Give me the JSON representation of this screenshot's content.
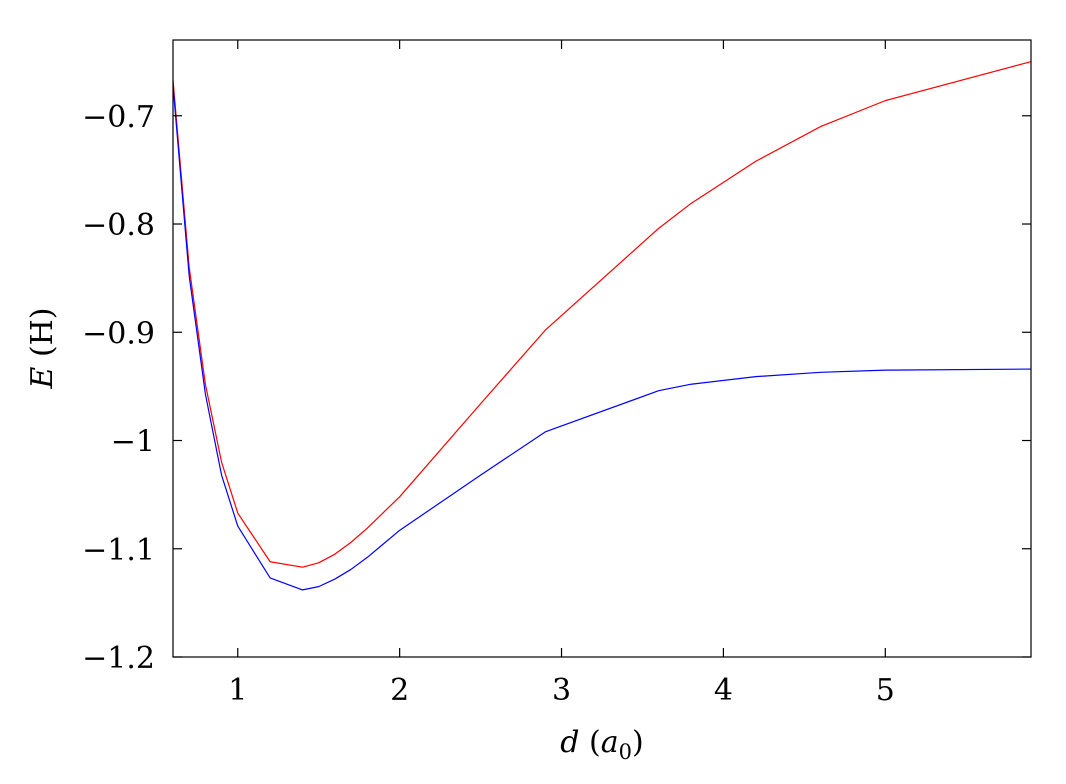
{
  "chart_data": {
    "type": "line",
    "title": "",
    "xlabel": {
      "var": "d",
      "open": " (",
      "unit_base": "a",
      "unit_sub": "0",
      "close": ")"
    },
    "ylabel": {
      "var": "E",
      "rest": " (H)"
    },
    "xlim": [
      0.6,
      5.9
    ],
    "ylim": [
      -1.2,
      -0.63
    ],
    "xticks": [
      1,
      2,
      3,
      4,
      5
    ],
    "xtick_labels": [
      "1",
      "2",
      "3",
      "4",
      "5"
    ],
    "yticks": [
      -1.2,
      -1.1,
      -1.0,
      -0.9,
      -0.8,
      -0.7
    ],
    "ytick_labels": [
      "−1.2",
      "−1.1",
      "−1",
      "−0.9",
      "−0.8",
      "−0.7"
    ],
    "grid": false,
    "legend": "none",
    "series": [
      {
        "color": "#ff0000",
        "x": [
          0.6,
          0.7,
          0.8,
          0.9,
          1.0,
          1.2,
          1.4,
          1.5,
          1.6,
          1.7,
          1.8,
          2.0,
          2.5,
          2.9,
          3.6,
          3.8,
          4.2,
          4.6,
          5.0,
          5.9
        ],
        "y": [
          -0.667,
          -0.84,
          -0.948,
          -1.02,
          -1.067,
          -1.112,
          -1.117,
          -1.113,
          -1.105,
          -1.094,
          -1.081,
          -1.052,
          -0.966,
          -0.898,
          -0.804,
          -0.781,
          -0.742,
          -0.71,
          -0.686,
          -0.65
        ]
      },
      {
        "color": "#0000ff",
        "x": [
          0.6,
          0.7,
          0.8,
          0.9,
          1.0,
          1.2,
          1.4,
          1.5,
          1.6,
          1.7,
          1.8,
          2.0,
          2.5,
          2.9,
          3.6,
          3.8,
          4.2,
          4.6,
          5.0,
          5.9
        ],
        "y": [
          -0.672,
          -0.848,
          -0.957,
          -1.032,
          -1.079,
          -1.127,
          -1.138,
          -1.135,
          -1.128,
          -1.119,
          -1.108,
          -1.083,
          -1.032,
          -0.992,
          -0.954,
          -0.948,
          -0.941,
          -0.937,
          -0.935,
          -0.934
        ]
      }
    ]
  }
}
